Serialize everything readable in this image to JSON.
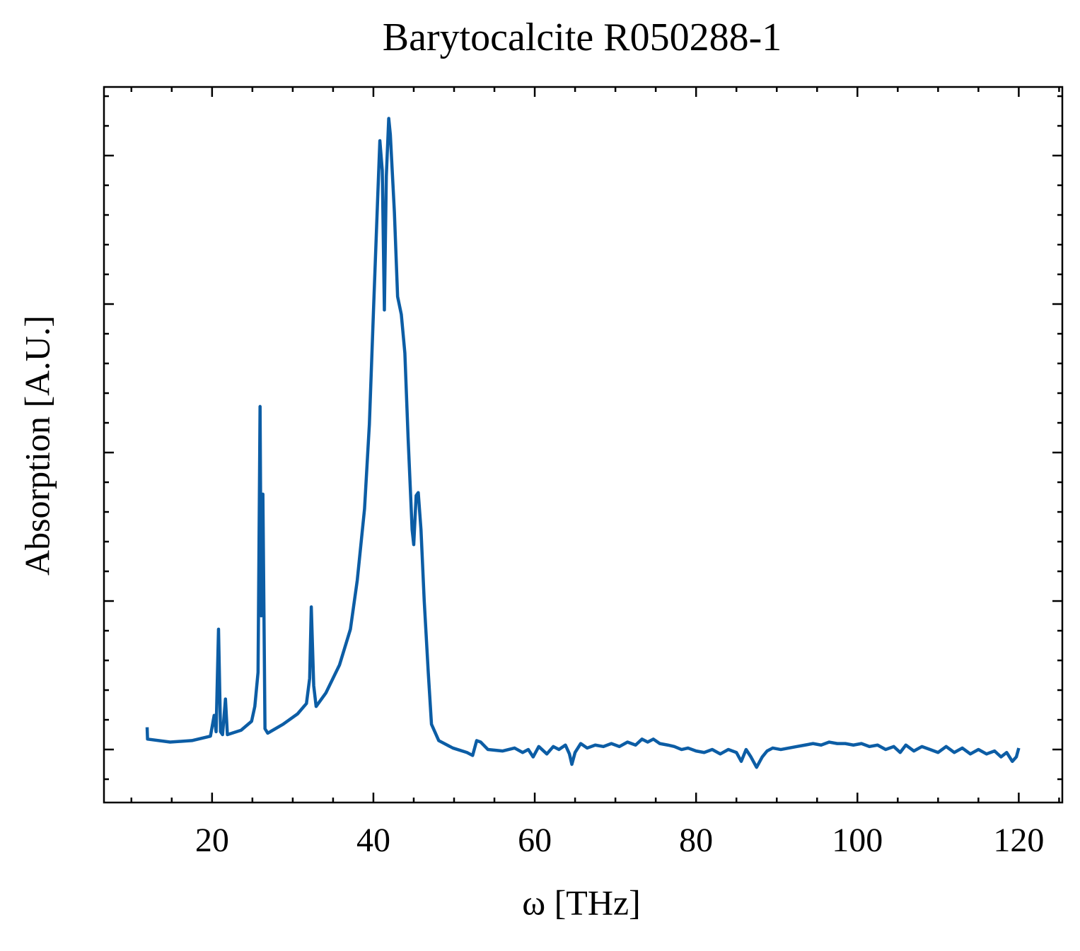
{
  "chart_data": {
    "type": "line",
    "title": "Barytocalcite R050288-1",
    "xlabel": "ω [THz]",
    "ylabel": "Absorption [A.U.]",
    "color": "#0c5da5",
    "xlim": [
      6.6,
      125.4
    ],
    "ylim": [
      -0.357,
      4.462
    ],
    "xticks": [
      20,
      40,
      60,
      80,
      100,
      120
    ],
    "yticks": [
      0,
      1,
      2,
      3,
      4
    ],
    "xminorticks": [
      10,
      15,
      25,
      30,
      35,
      45,
      50,
      55,
      65,
      70,
      75,
      85,
      90,
      95,
      105,
      110,
      115,
      125
    ],
    "yminorticks": [
      -0.2,
      0.2,
      0.4,
      0.6,
      0.8,
      1.2,
      1.4,
      1.6,
      1.8,
      2.2,
      2.4,
      2.6,
      2.8,
      3.2,
      3.4,
      3.6,
      3.8,
      4.2,
      4.4
    ],
    "x": [
      11.95,
      12.0,
      14.8,
      17.5,
      19.8,
      20.26,
      20.5,
      20.8,
      21.05,
      21.3,
      21.66,
      21.9,
      23.6,
      24.9,
      25.3,
      25.7,
      25.95,
      26.1,
      26.3,
      26.56,
      26.9,
      28.8,
      30.6,
      31.7,
      32.1,
      32.3,
      32.6,
      32.9,
      34.1,
      35.8,
      37.15,
      38.0,
      38.9,
      39.5,
      40.04,
      40.5,
      40.8,
      41.1,
      41.36,
      41.6,
      41.9,
      42.1,
      42.6,
      43.0,
      43.46,
      43.9,
      44.3,
      44.8,
      45.0,
      45.3,
      45.56,
      45.9,
      46.3,
      46.8,
      47.2,
      48.1,
      49.85,
      51.6,
      52.3,
      52.8,
      53.3,
      54.2,
      56,
      57.5,
      58.5,
      59.2,
      59.8,
      60.5,
      61.5,
      62.3,
      63,
      63.8,
      64.3,
      64.6,
      65,
      65.7,
      66.5,
      67.5,
      68.5,
      69.5,
      70.5,
      71.5,
      72.5,
      73.3,
      74,
      74.7,
      75.5,
      76.5,
      77.3,
      78.2,
      79,
      80,
      81,
      82,
      83,
      84,
      85,
      85.6,
      86.2,
      86.8,
      87.5,
      88.2,
      88.8,
      89.5,
      90.5,
      91.5,
      92.5,
      93.5,
      94.5,
      95.5,
      96.5,
      97.5,
      98.5,
      99.5,
      100.5,
      101.5,
      102.5,
      103.5,
      104.5,
      105.3,
      106,
      107,
      108,
      109,
      110,
      111,
      112,
      113,
      114,
      115,
      116,
      117,
      117.8,
      118.5,
      119.2,
      119.7,
      120
    ],
    "values": [
      0.15,
      0.07,
      0.05,
      0.06,
      0.09,
      0.23,
      0.12,
      0.81,
      0.12,
      0.1,
      0.34,
      0.1,
      0.13,
      0.19,
      0.29,
      0.52,
      2.31,
      0.9,
      1.72,
      0.14,
      0.11,
      0.17,
      0.24,
      0.31,
      0.48,
      0.96,
      0.43,
      0.29,
      0.38,
      0.57,
      0.81,
      1.14,
      1.62,
      2.19,
      3.0,
      3.67,
      4.1,
      3.9,
      2.96,
      3.86,
      4.25,
      4.14,
      3.62,
      3.05,
      2.93,
      2.67,
      2.1,
      1.48,
      1.38,
      1.71,
      1.73,
      1.48,
      1.0,
      0.52,
      0.17,
      0.06,
      0.01,
      -0.02,
      -0.04,
      0.06,
      0.05,
      0.0,
      -0.01,
      0.01,
      -0.02,
      0.0,
      -0.05,
      0.02,
      -0.03,
      0.02,
      0.0,
      0.03,
      -0.03,
      -0.1,
      -0.02,
      0.04,
      0.01,
      0.03,
      0.02,
      0.04,
      0.02,
      0.05,
      0.03,
      0.07,
      0.05,
      0.07,
      0.04,
      0.03,
      0.02,
      0.0,
      0.01,
      -0.01,
      -0.02,
      0.0,
      -0.03,
      0.0,
      -0.02,
      -0.08,
      0.0,
      -0.05,
      -0.12,
      -0.05,
      -0.01,
      0.01,
      0.0,
      0.01,
      0.02,
      0.03,
      0.04,
      0.03,
      0.05,
      0.04,
      0.04,
      0.03,
      0.04,
      0.02,
      0.03,
      0.0,
      0.02,
      -0.02,
      0.03,
      -0.01,
      0.02,
      0.0,
      -0.02,
      0.02,
      -0.02,
      0.01,
      -0.03,
      0.0,
      -0.03,
      -0.01,
      -0.05,
      -0.02,
      -0.08,
      -0.05,
      0.01
    ]
  }
}
